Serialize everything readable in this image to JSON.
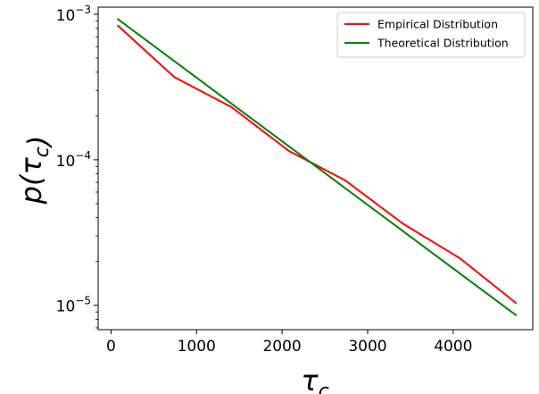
{
  "chart_data": {
    "type": "line",
    "title": "",
    "xlabel": "τ_c",
    "ylabel": "p(τ_c)",
    "xlim": [
      -150,
      4930
    ],
    "ylim": [
      6.8e-06,
      0.00112
    ],
    "yscale": "log",
    "grid": false,
    "legend_position": "top-right",
    "x_ticks": [
      0,
      1000,
      2000,
      3000,
      4000
    ],
    "x_tick_labels": [
      "0",
      "1000",
      "2000",
      "3000",
      "4000"
    ],
    "y_ticks": [
      1e-05,
      0.0001,
      0.001
    ],
    "y_tick_labels": [
      {
        "base": "10",
        "exp": "−5"
      },
      {
        "base": "10",
        "exp": "−4"
      },
      {
        "base": "10",
        "exp": "−3"
      }
    ],
    "series": [
      {
        "name": "Empirical Distribution",
        "color": "#ff0000",
        "x": [
          75,
          740,
          1410,
          2080,
          2740,
          3410,
          4080,
          4740
        ],
        "y": [
          0.00084,
          0.00037,
          0.00023,
          0.000115,
          7.2e-05,
          3.65e-05,
          2.1e-05,
          1.03e-05
        ]
      },
      {
        "name": "Theoretical Distribution",
        "color": "#008000",
        "x": [
          75,
          4740
        ],
        "y": [
          0.00093,
          8.5e-06
        ]
      }
    ]
  }
}
